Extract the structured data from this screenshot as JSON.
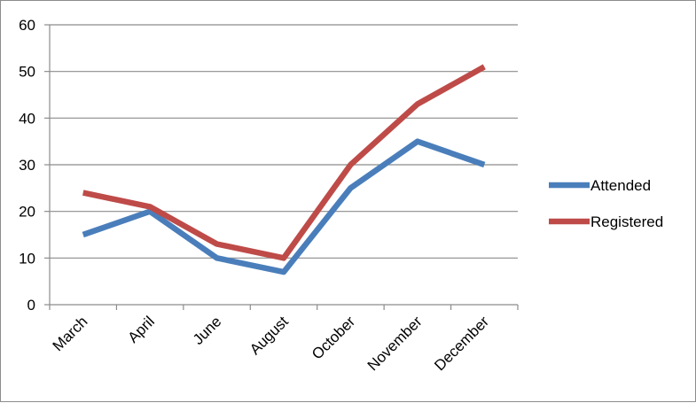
{
  "chart_data": {
    "type": "line",
    "categories": [
      "March",
      "April",
      "June",
      "August",
      "October",
      "November",
      "December"
    ],
    "series": [
      {
        "name": "Attended",
        "color": "#4a7ebb",
        "values": [
          15,
          20,
          10,
          7,
          25,
          35,
          30
        ]
      },
      {
        "name": "Registered",
        "color": "#be4b48",
        "values": [
          24,
          21,
          13,
          10,
          30,
          43,
          51
        ]
      }
    ],
    "ylim": [
      0,
      60
    ],
    "yticks": [
      0,
      10,
      20,
      30,
      40,
      50,
      60
    ],
    "grid": true,
    "legend": "right",
    "title": "",
    "xlabel": "",
    "ylabel": ""
  }
}
